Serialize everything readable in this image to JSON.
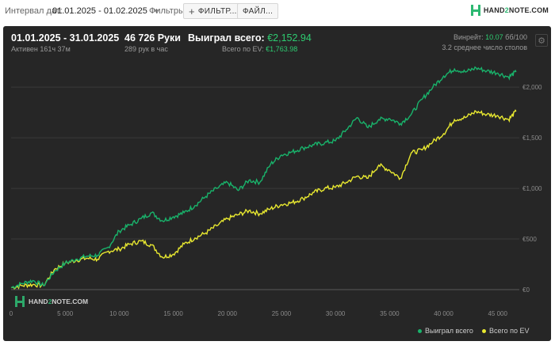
{
  "topbar": {
    "interval_label": "Интервал дат:",
    "date_range": "01.01.2025 - 01.02.2025",
    "filters_label": "Фильтры:",
    "filter_button": "ФИЛЬТР...",
    "file_button": "ФАЙЛ...",
    "brand": {
      "pre": "HAND",
      "two": "2",
      "post": "NOTE.COM"
    }
  },
  "stats": {
    "period": "01.01.2025 - 31.01.2025",
    "active": "Активен 161ч 37м",
    "hands": "46 726 Руки",
    "hands_per_hour": "289 рук в час",
    "won_label": "Выиграл всего:",
    "won_value": "€2,152.94",
    "ev_label": "Всего по EV:",
    "ev_value": "€1,763.98",
    "winrate_label": "Винрейт:",
    "winrate_value": "10.07",
    "winrate_unit": "бб/100",
    "tables": "3.2 среднее число столов"
  },
  "watermark": {
    "pre": "HAND",
    "two": "2",
    "post": "NOTE.COM"
  },
  "colors": {
    "won": "#19b36b",
    "ev": "#e8e830",
    "panel": "#262626",
    "grid": "#3a3a3a"
  },
  "icons": {
    "gear": "gear-icon",
    "plus": "plus-icon",
    "caret": "chevron-down-icon"
  },
  "chart_data": {
    "type": "line",
    "x_ticks": [
      "0",
      "5 000",
      "10 000",
      "15 000",
      "20 000",
      "25 000",
      "30 000",
      "35 000",
      "40 000",
      "45 000"
    ],
    "y_ticks": [
      "€0",
      "€500",
      "€1,000",
      "€1,500",
      "€2,000"
    ],
    "xlim": [
      0,
      47000
    ],
    "ylim": [
      0,
      2150
    ],
    "grid": true,
    "legend_position": "bottom-right",
    "x": [
      0,
      1000,
      2000,
      3000,
      4000,
      5000,
      6000,
      7000,
      8000,
      9000,
      10000,
      11000,
      12000,
      13000,
      14000,
      15000,
      16000,
      17000,
      18000,
      19000,
      20000,
      21000,
      22000,
      23000,
      24000,
      25000,
      26000,
      27000,
      28000,
      29000,
      30000,
      31000,
      32000,
      33000,
      34000,
      35000,
      36000,
      37000,
      38000,
      39000,
      40000,
      41000,
      42000,
      43000,
      44000,
      45000,
      46000,
      46700
    ],
    "series": [
      {
        "name": "Выиграл всего",
        "values": [
          20,
          60,
          90,
          40,
          180,
          260,
          300,
          330,
          340,
          420,
          580,
          640,
          700,
          760,
          680,
          720,
          760,
          830,
          920,
          1000,
          1060,
          980,
          1080,
          1060,
          1240,
          1330,
          1360,
          1400,
          1430,
          1450,
          1470,
          1580,
          1700,
          1600,
          1680,
          1690,
          1640,
          1730,
          1880,
          2000,
          2110,
          2180,
          2150,
          2190,
          2160,
          2140,
          2100,
          2150
        ]
      },
      {
        "name": "Всего по EV",
        "values": [
          20,
          40,
          50,
          40,
          200,
          260,
          290,
          310,
          300,
          380,
          400,
          450,
          480,
          440,
          320,
          350,
          450,
          510,
          560,
          630,
          700,
          740,
          780,
          750,
          800,
          840,
          860,
          900,
          960,
          1000,
          1010,
          1060,
          1120,
          1100,
          1230,
          1180,
          1100,
          1350,
          1380,
          1460,
          1540,
          1680,
          1700,
          1760,
          1730,
          1720,
          1680,
          1760
        ]
      }
    ]
  },
  "legend": {
    "won": "Выиграл всего",
    "ev": "Всего по EV"
  }
}
